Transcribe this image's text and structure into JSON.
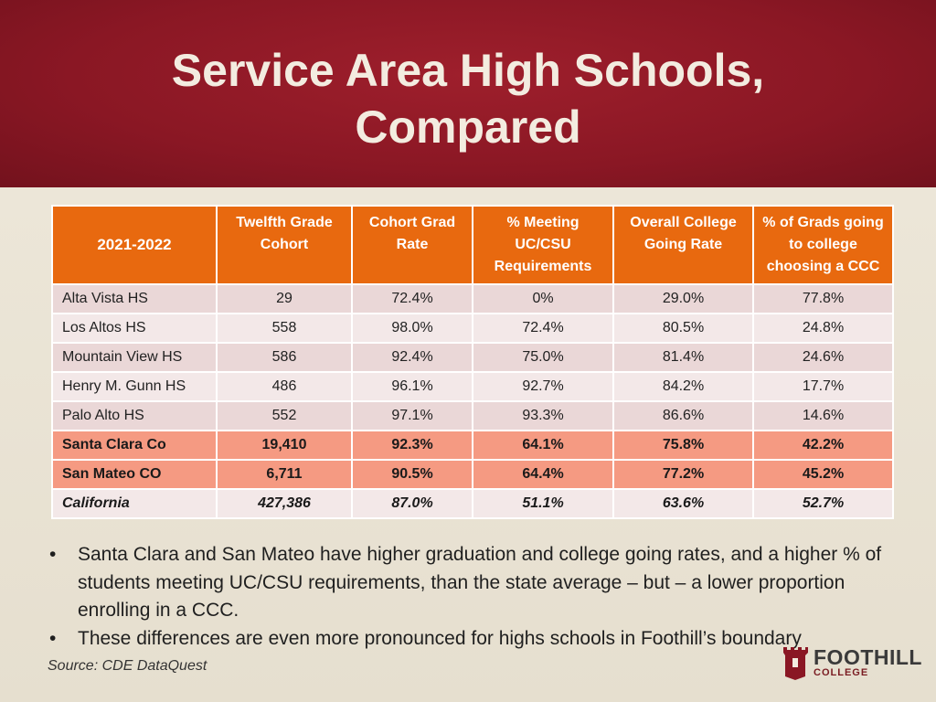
{
  "slide": {
    "title_line1": "Service Area High Schools,",
    "title_line2": "Compared"
  },
  "table": {
    "headers": [
      "2021-2022",
      "Twelfth Grade Cohort",
      "Cohort Grad Rate",
      "% Meeting UC/CSU Requirements",
      "Overall College Going Rate",
      "% of Grads going to college choosing a CCC"
    ],
    "rows": [
      [
        "Alta Vista HS",
        "29",
        "72.4%",
        "0%",
        "29.0%",
        "77.8%"
      ],
      [
        "Los Altos HS",
        "558",
        "98.0%",
        "72.4%",
        "80.5%",
        "24.8%"
      ],
      [
        "Mountain View HS",
        "586",
        "92.4%",
        "75.0%",
        "81.4%",
        "24.6%"
      ],
      [
        "Henry M. Gunn HS",
        "486",
        "96.1%",
        "92.7%",
        "84.2%",
        "17.7%"
      ],
      [
        "Palo Alto HS",
        "552",
        "97.1%",
        "93.3%",
        "86.6%",
        "14.6%"
      ],
      [
        "Santa Clara Co",
        "19,410",
        "92.3%",
        "64.1%",
        "75.8%",
        "42.2%"
      ],
      [
        "San Mateo CO",
        "6,711",
        "90.5%",
        "64.4%",
        "77.2%",
        "45.2%"
      ],
      [
        "California",
        "427,386",
        "87.0%",
        "51.1%",
        "63.6%",
        "52.7%"
      ]
    ]
  },
  "bullets": [
    "Santa Clara and San Mateo have higher graduation and college going rates, and a higher % of students meeting UC/CSU requirements, than the state average – but – a lower proportion enrolling in a CCC.",
    "These differences are even more pronounced for highs schools in Foothill’s boundary"
  ],
  "source": "Source: CDE DataQuest",
  "logo": {
    "name": "FOOTHILL",
    "sub": "COLLEGE",
    "icon": "tower-icon"
  },
  "colors": {
    "header_bg": "#8a1724",
    "table_header": "#e8690f",
    "county_rows": "#f59a82",
    "row_odd": "#ead7d7",
    "row_even": "#f3e8e8"
  }
}
